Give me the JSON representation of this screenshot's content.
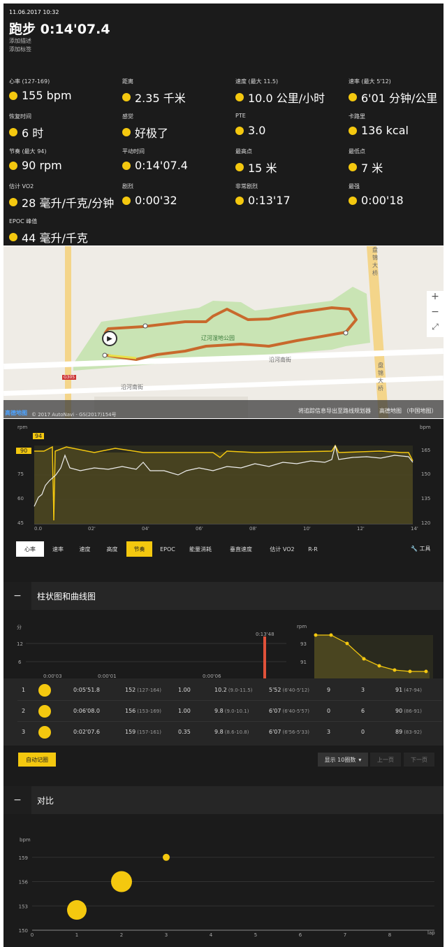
{
  "header": {
    "datetime": "11.06.2017 10:32",
    "title": "跑步 0:14'07.4",
    "add_desc": "添加描述",
    "add_tag": "添加标签"
  },
  "stats": [
    {
      "label": "心率 (127-169)",
      "value": "155 bpm",
      "icon": "heart-icon"
    },
    {
      "label": "距离",
      "value": "2.35 千米",
      "icon": "distance-icon"
    },
    {
      "label": "速度 (最大 11.5)",
      "value": "10.0 公里/小时",
      "icon": "speed-icon"
    },
    {
      "label": "速率 (最大 5'12)",
      "value": "6'01 分钟/公里",
      "icon": "pace-icon"
    },
    {
      "label": "恢复时间",
      "value": "6 时",
      "icon": "recovery-icon"
    },
    {
      "label": "感觉",
      "value": "好极了",
      "icon": "smile-icon"
    },
    {
      "label": "PTE",
      "value": "3.0",
      "icon": "pte-icon"
    },
    {
      "label": "卡路里",
      "value": "136 kcal",
      "icon": "flame-icon"
    },
    {
      "label": "节奏 (最大 94)",
      "value": "90 rpm",
      "icon": "cadence-icon"
    },
    {
      "label": "平动时间",
      "value": "0:14'07.4",
      "icon": "time-icon"
    },
    {
      "label": "最高点",
      "value": "15 米",
      "icon": "up-arrow-icon"
    },
    {
      "label": "最低点",
      "value": "7 米",
      "icon": "down-arrow-icon"
    },
    {
      "label": "估计 VO2",
      "value": "28 毫升/千克/分钟",
      "icon": "vo2-icon"
    },
    {
      "label": "剧烈",
      "value": "0:00'32",
      "icon": "heart-bolt-icon"
    },
    {
      "label": "非常剧烈",
      "value": "0:13'17",
      "icon": "heart-bolt-icon"
    },
    {
      "label": "最强",
      "value": "0:00'18",
      "icon": "heart-bolt-icon"
    },
    {
      "label": "EPOC 峰值",
      "value": "44 毫升/千克",
      "icon": "epoc-icon"
    }
  ],
  "map": {
    "park_label": "辽河湿地公园",
    "road1": "沿河南街",
    "road2": "沿河南街",
    "road_shield": "G305",
    "bridge": "盘锦大桥",
    "bridge2": "盘锦大桥",
    "logo": "高德地图",
    "copyright": "© 2017 AutoNavi - GS(2017)154号",
    "export_link": "将追踪信息导出至路线规划器",
    "map_source": "高德地图 （中国地图）",
    "zoom_in": "+",
    "zoom_out": "−",
    "fullscreen": "⤢"
  },
  "main_chart": {
    "left_unit": "rpm",
    "right_unit": "bpm",
    "left_ticks": [
      "75",
      "60",
      "45"
    ],
    "right_ticks": [
      "165",
      "150",
      "135",
      "120"
    ],
    "x_ticks": [
      "0.0",
      "02'",
      "04'",
      "06'",
      "08'",
      "10'",
      "12'",
      "14'"
    ],
    "max_marker": "94",
    "cur_marker": "90"
  },
  "tabs": [
    "心率",
    "速率",
    "速度",
    "高度",
    "节奏",
    "EPOC",
    "能量消耗",
    "垂直速度",
    "估计 VO2",
    "R-R"
  ],
  "tools_label": "工具",
  "section1": {
    "title": "柱状图和曲线图",
    "minus": "−"
  },
  "bar_chart": {
    "unit": "分",
    "ticks": [
      "12",
      "6"
    ],
    "labels": [
      "0:00'03",
      "0:00'01",
      "0:00'06",
      "0:13'48"
    ],
    "values": [
      0.05,
      0.02,
      0.1,
      13.8
    ]
  },
  "cadence_chart": {
    "unit": "rpm",
    "ticks": [
      "93",
      "91"
    ]
  },
  "laps": [
    {
      "n": "1",
      "time": "0:05'51.8",
      "hr": "152",
      "hr_range": "(127-164)",
      "dist": "1.00",
      "speed": "10.2",
      "speed_range": "(9.0-11.5)",
      "pace": "5'52",
      "pace_range": "(6'40-5'12)",
      "a": "9",
      "b": "3",
      "cad": "91",
      "cad_range": "(47-94)"
    },
    {
      "n": "2",
      "time": "0:06'08.0",
      "hr": "156",
      "hr_range": "(153-169)",
      "dist": "1.00",
      "speed": "9.8",
      "speed_range": "(9.0-10.1)",
      "pace": "6'07",
      "pace_range": "(6'40-5'57)",
      "a": "0",
      "b": "6",
      "cad": "90",
      "cad_range": "(86-91)"
    },
    {
      "n": "3",
      "time": "0:02'07.6",
      "hr": "159",
      "hr_range": "(157-161)",
      "dist": "0.35",
      "speed": "9.8",
      "speed_range": "(8.6-10.8)",
      "pace": "6'07",
      "pace_range": "(6'56-5'33)",
      "a": "3",
      "b": "0",
      "cad": "89",
      "cad_range": "(83-92)"
    }
  ],
  "auto_record": "自动记圈",
  "per_page": "显示 10圈数",
  "prev": "上一页",
  "next": "下一页",
  "section2": {
    "title": "对比",
    "minus": "−"
  },
  "chart_data": {
    "type": "scatter",
    "ylabel": "bpm",
    "xlabel": "lap",
    "y_ticks": [
      "159",
      "156",
      "153",
      "150"
    ],
    "x_ticks": [
      "0",
      "1",
      "2",
      "3",
      "4",
      "5",
      "6",
      "7",
      "8"
    ],
    "x": [
      1,
      2,
      3
    ],
    "y": [
      152.5,
      156,
      159
    ],
    "ylim": [
      150,
      159.5
    ],
    "xlim": [
      0,
      9
    ]
  },
  "colors": {
    "accent": "#f4c80f",
    "bg": "#1b1b1b",
    "route": "#c8692c"
  }
}
